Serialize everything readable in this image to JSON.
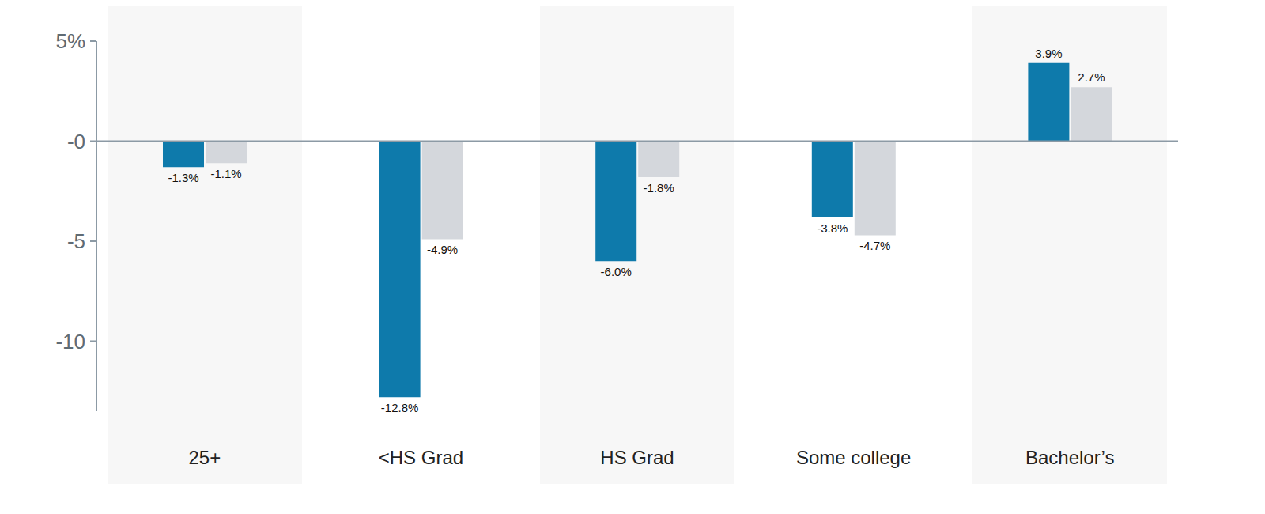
{
  "chart_data": {
    "type": "bar",
    "categories": [
      "25+",
      "<HS Grad",
      "HS Grad",
      "Some college",
      "Bachelor’s"
    ],
    "series": [
      {
        "color": "#0e7aab",
        "values": [
          -1.3,
          -12.8,
          -6.0,
          -3.8,
          3.9
        ],
        "value_labels": [
          "-1.3%",
          "-12.8%",
          "-6.0%",
          "-3.8%",
          "3.9%"
        ]
      },
      {
        "color": "#d4d7dc",
        "values": [
          -1.1,
          -4.9,
          -1.8,
          -4.7,
          2.7
        ],
        "value_labels": [
          "-1.1%",
          "-4.9%",
          "-1.8%",
          "-4.7%",
          "2.7%"
        ]
      }
    ],
    "ylim": [
      -13.5,
      5
    ],
    "yticks": [
      {
        "value": 5,
        "label": "5%"
      },
      {
        "value": 0,
        "label": "-0"
      },
      -5,
      -10
    ],
    "data_labels": true,
    "grid": false
  }
}
